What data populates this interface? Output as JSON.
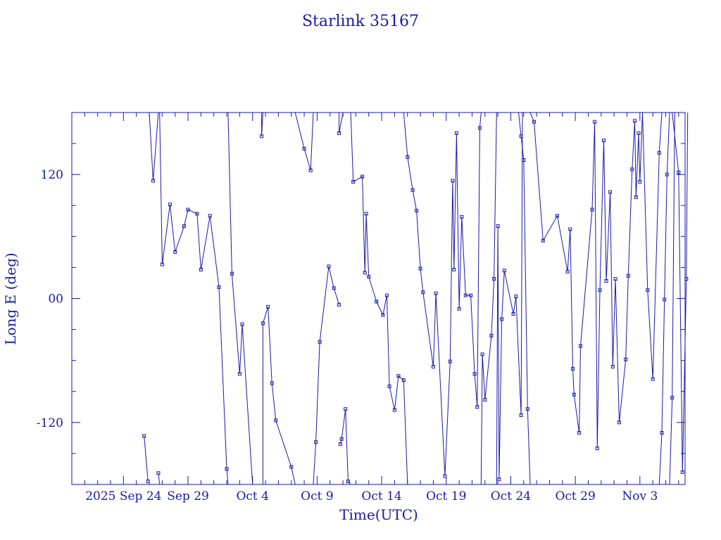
{
  "chart_data": {
    "type": "line",
    "title": "Starlink 35167",
    "xlabel": "Time(UTC)",
    "ylabel": "Long E (deg)",
    "x_tick_labels": [
      "2025 Sep 24",
      "Sep 29",
      "Oct  4",
      "Oct  9",
      "Oct 14",
      "Oct 19",
      "Oct 24",
      "Oct 29",
      "Nov  3"
    ],
    "x_tick_days": [
      0,
      5,
      10,
      15,
      20,
      25,
      30,
      35,
      40
    ],
    "x_range_days": [
      -4,
      43.5
    ],
    "y_tick_labels": [
      "-120",
      "00",
      "120"
    ],
    "y_tick_values": [
      -120,
      0,
      120
    ],
    "ylim": [
      -180,
      180
    ],
    "grid": false,
    "series": [
      {
        "points": [
          [
            1.6,
            -133
          ],
          [
            1.9,
            -177
          ],
          "break",
          [
            2.0,
            180
          ],
          [
            2.3,
            114
          ],
          [
            2.7,
            180
          ],
          "break",
          [
            2.7,
            -169
          ],
          [
            2.8,
            -180
          ],
          "break",
          [
            2.8,
            180
          ],
          [
            3.0,
            33
          ],
          [
            3.6,
            91
          ],
          [
            4.0,
            45
          ],
          [
            4.7,
            70
          ],
          [
            5.0,
            86
          ],
          [
            5.7,
            82
          ],
          [
            6.0,
            28
          ],
          [
            6.7,
            80
          ],
          [
            7.4,
            11
          ],
          [
            8.0,
            -165
          ],
          [
            8.1,
            -180
          ],
          "break",
          [
            8.1,
            180
          ],
          [
            8.4,
            24
          ],
          [
            9.0,
            -73
          ],
          [
            9.2,
            -25
          ],
          [
            10.0,
            -180
          ],
          "break",
          [
            10.7,
            180
          ],
          [
            10.7,
            157
          ],
          [
            10.8,
            180
          ],
          "break",
          [
            10.8,
            -180
          ],
          [
            10.8,
            -24
          ],
          [
            11.2,
            -8
          ],
          [
            11.5,
            -82
          ],
          [
            11.8,
            -118
          ],
          [
            13.0,
            -163
          ],
          [
            13.3,
            -180
          ],
          "break",
          [
            13.3,
            180
          ],
          [
            14.0,
            145
          ],
          [
            14.5,
            124
          ],
          [
            14.7,
            180
          ],
          "break",
          [
            14.7,
            -180
          ],
          [
            14.9,
            -139
          ],
          [
            15.2,
            -42
          ],
          [
            15.9,
            31
          ],
          [
            16.3,
            10
          ],
          [
            16.7,
            -6
          ],
          "break",
          [
            16.7,
            180
          ],
          [
            16.7,
            160
          ],
          [
            17.0,
            180
          ],
          "break",
          [
            16.8,
            -141
          ],
          [
            16.9,
            -136
          ],
          [
            17.2,
            -107
          ],
          [
            17.4,
            -177
          ],
          [
            17.6,
            -180
          ],
          "break",
          [
            17.6,
            180
          ],
          [
            17.8,
            113
          ],
          [
            18.5,
            118
          ],
          [
            18.7,
            25
          ],
          [
            18.8,
            82
          ],
          [
            19.0,
            21
          ],
          [
            19.6,
            -3
          ],
          [
            20.1,
            -16
          ],
          [
            20.4,
            3
          ],
          [
            20.6,
            -85
          ],
          [
            21.0,
            -108
          ],
          [
            21.3,
            -75
          ],
          [
            21.7,
            -79
          ],
          [
            22.0,
            -180
          ],
          "break",
          [
            21.7,
            180
          ],
          [
            22.0,
            137
          ],
          [
            22.4,
            105
          ],
          [
            22.7,
            85
          ],
          [
            23.0,
            29
          ],
          [
            23.2,
            6
          ],
          [
            24.0,
            -66
          ],
          [
            24.2,
            5
          ],
          [
            24.9,
            -172
          ],
          [
            25.3,
            -61
          ],
          [
            25.5,
            114
          ],
          [
            25.6,
            28
          ],
          [
            25.8,
            160
          ],
          [
            26.0,
            -10
          ],
          [
            26.2,
            79
          ],
          [
            26.5,
            3
          ],
          [
            26.9,
            3
          ],
          [
            27.2,
            -73
          ],
          [
            27.4,
            -105
          ],
          [
            27.6,
            165
          ],
          [
            27.7,
            180
          ],
          "break",
          [
            27.7,
            -180
          ],
          [
            27.8,
            -54
          ],
          [
            28.0,
            -98
          ],
          [
            28.5,
            -36
          ],
          [
            28.7,
            19
          ],
          [
            28.9,
            180
          ],
          "break",
          [
            28.9,
            -180
          ],
          [
            29.0,
            70
          ],
          [
            29.1,
            -175
          ],
          [
            29.3,
            -20
          ],
          [
            29.5,
            27
          ],
          [
            30.2,
            -15
          ],
          [
            30.4,
            2
          ],
          [
            30.8,
            -113
          ],
          [
            30.9,
            180
          ],
          "break",
          [
            30.6,
            180
          ],
          [
            30.8,
            157
          ],
          [
            31.0,
            134
          ],
          [
            31.3,
            -107
          ],
          [
            31.5,
            -180
          ],
          "break",
          [
            31.5,
            180
          ],
          [
            31.8,
            171
          ],
          [
            32.5,
            56
          ],
          [
            33.6,
            80
          ],
          [
            34.4,
            26
          ],
          [
            34.6,
            67
          ],
          [
            34.8,
            -68
          ],
          [
            34.9,
            -93
          ],
          [
            35.3,
            -130
          ],
          [
            35.4,
            -46
          ],
          [
            36.3,
            86
          ],
          [
            36.5,
            171
          ],
          [
            36.7,
            -145
          ],
          [
            36.9,
            8
          ],
          [
            37.2,
            153
          ],
          [
            37.4,
            17
          ],
          [
            37.7,
            103
          ],
          [
            37.9,
            -66
          ],
          [
            38.1,
            19
          ],
          [
            38.4,
            -120
          ],
          [
            38.9,
            -59
          ],
          [
            39.1,
            22
          ],
          [
            39.4,
            125
          ],
          [
            39.6,
            172
          ],
          [
            39.7,
            98
          ],
          [
            39.9,
            160
          ],
          [
            40.0,
            113
          ],
          [
            40.2,
            180
          ],
          "break",
          [
            40.2,
            180
          ],
          [
            40.6,
            8
          ],
          [
            41.0,
            -78
          ],
          [
            41.5,
            141
          ],
          [
            41.7,
            180
          ],
          "break",
          [
            41.5,
            -180
          ],
          [
            41.7,
            -130
          ],
          [
            41.9,
            -1
          ],
          [
            42.1,
            120
          ],
          [
            42.3,
            180
          ],
          "break",
          [
            42.3,
            -180
          ],
          [
            42.5,
            -96
          ],
          [
            42.7,
            180
          ],
          "break",
          [
            42.5,
            180
          ],
          [
            43.0,
            122
          ],
          [
            43.3,
            -168
          ],
          [
            43.6,
            19
          ],
          [
            43.7,
            180
          ],
          "break"
        ]
      }
    ]
  }
}
